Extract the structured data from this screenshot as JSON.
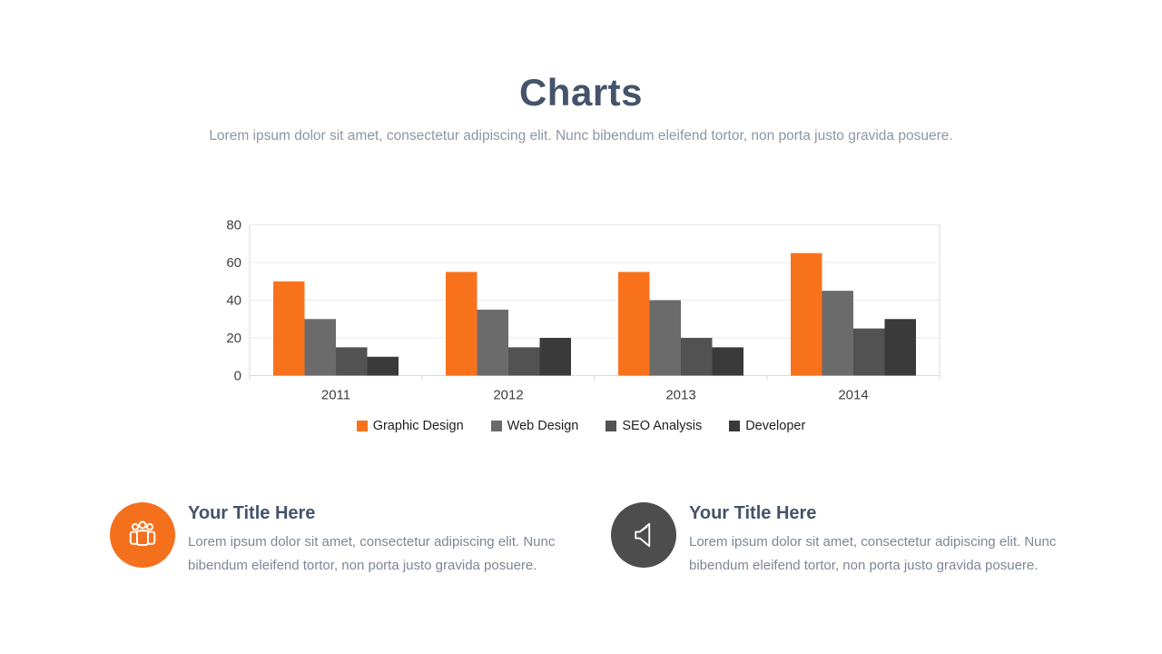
{
  "slide": {
    "title": "Charts",
    "subtitle": "Lorem ipsum dolor sit amet, consectetur adipiscing elit. Nunc bibendum eleifend tortor, non porta justo gravida posuere."
  },
  "chart_data": {
    "type": "bar",
    "categories": [
      "2011",
      "2012",
      "2013",
      "2014"
    ],
    "series": [
      {
        "name": "Graphic Design",
        "color": "#F8721C",
        "values": [
          50,
          55,
          55,
          65
        ]
      },
      {
        "name": "Web Design",
        "color": "#6B6B6B",
        "values": [
          30,
          35,
          40,
          45
        ]
      },
      {
        "name": "SEO Analysis",
        "color": "#525252",
        "values": [
          15,
          15,
          20,
          25
        ]
      },
      {
        "name": "Developer",
        "color": "#3A3A3A",
        "values": [
          10,
          20,
          15,
          30
        ]
      }
    ],
    "title": "",
    "xlabel": "",
    "ylabel": "",
    "ylim": [
      0,
      80
    ],
    "yticks": [
      0,
      20,
      40,
      60,
      80
    ],
    "grid": true,
    "legend_position": "bottom"
  },
  "footers": [
    {
      "icon": "people-group-icon",
      "icon_bg": "#F5701D",
      "title": "Your Title Here",
      "text": "Lorem ipsum dolor sit amet, consectetur adipiscing elit. Nunc bibendum eleifend tortor, non porta justo gravida posuere."
    },
    {
      "icon": "speaker-icon",
      "icon_bg": "#4D4D4D",
      "title": "Your Title Here",
      "text": "Lorem ipsum dolor sit amet, consectetur adipiscing elit. Nunc bibendum eleifend tortor, non porta justo gravida posuere."
    }
  ],
  "colors": {
    "heading": "#44546A",
    "subtitle": "#8C97A4",
    "body_text": "#7D8795",
    "gridline": "#E9E9E9",
    "axis_line": "#D9D9D9",
    "tick_label": "#404040",
    "legend_label": "#212121"
  }
}
